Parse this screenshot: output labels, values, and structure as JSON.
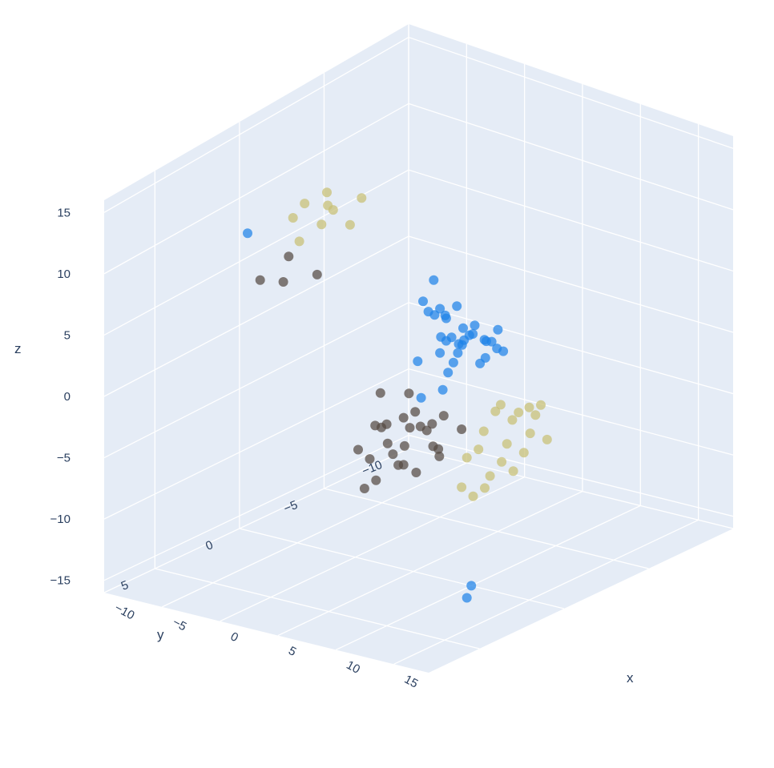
{
  "chart_data": {
    "type": "scatter",
    "subtype": "3d",
    "background_color": "#e5ecf6",
    "grid_color": "#ffffff",
    "axes": {
      "x": {
        "label": "x",
        "range": [
          -10,
          18
        ],
        "ticks": [
          "−10",
          "−5",
          "0",
          "5",
          "10",
          "15"
        ]
      },
      "y": {
        "label": "y",
        "range": [
          -10,
          8
        ],
        "ticks": [
          "−10",
          "−5",
          "0",
          "5"
        ]
      },
      "z": {
        "label": "z",
        "range": [
          -16,
          16
        ],
        "ticks": [
          "15",
          "10",
          "5",
          "0",
          "−5",
          "−10",
          "−15"
        ]
      }
    },
    "series": [
      {
        "color": "#1f82e8",
        "points": [
          [
            -2,
            5,
            13.5
          ],
          [
            10,
            0,
            -16
          ],
          [
            14,
            3,
            -14
          ],
          [
            -6,
            -8,
            -10
          ],
          [
            -3,
            -9,
            -5
          ],
          [
            -2,
            -9,
            -5.2
          ],
          [
            0,
            -5,
            0.5
          ],
          [
            2,
            -4,
            1
          ],
          [
            -1,
            -6,
            -1
          ],
          [
            3,
            -5,
            0
          ],
          [
            1,
            -3,
            -2
          ],
          [
            -2,
            -6,
            1.5
          ],
          [
            4,
            -4,
            0.2
          ],
          [
            0,
            -5,
            -3
          ],
          [
            2,
            -6,
            -4
          ],
          [
            1,
            -7,
            -4.5
          ],
          [
            3,
            -4,
            -1.5
          ],
          [
            -1,
            -5,
            0
          ],
          [
            5,
            -3,
            0.8
          ],
          [
            6,
            -2,
            1.5
          ],
          [
            7,
            -1,
            1
          ],
          [
            8,
            0,
            1.2
          ],
          [
            9,
            1,
            0.8
          ],
          [
            2,
            -5,
            -0.5
          ],
          [
            3,
            -6,
            -2
          ],
          [
            1,
            -4,
            1
          ],
          [
            4,
            -5,
            -1
          ],
          [
            0,
            -6,
            0
          ],
          [
            2,
            -7,
            -3.5
          ],
          [
            -1,
            -7,
            -4
          ],
          [
            5,
            -5,
            0.2
          ],
          [
            3,
            -3,
            0.5
          ],
          [
            1,
            -5,
            -1.5
          ],
          [
            4,
            -6,
            -2.5
          ],
          [
            2,
            -4,
            -0.8
          ],
          [
            0,
            -4,
            1.8
          ]
        ]
      },
      {
        "color": "#544a42",
        "points": [
          [
            9,
            3,
            2
          ],
          [
            10,
            4,
            1
          ],
          [
            11,
            3,
            0
          ],
          [
            12,
            5,
            1.5
          ],
          [
            10,
            6,
            -1
          ],
          [
            11,
            5,
            -2
          ],
          [
            12,
            4,
            0.5
          ],
          [
            13,
            6,
            1
          ],
          [
            10,
            3,
            -0.5
          ],
          [
            11,
            6,
            2
          ],
          [
            12,
            7,
            -1.5
          ],
          [
            9,
            5,
            0.8
          ],
          [
            13,
            4,
            -0.8
          ],
          [
            11,
            4,
            1.8
          ],
          [
            12,
            6,
            0
          ],
          [
            10,
            5,
            1.2
          ],
          [
            8,
            4,
            2.5
          ],
          [
            13,
            7,
            2
          ],
          [
            11,
            7,
            -2.5
          ],
          [
            10,
            4,
            -3
          ],
          [
            12,
            3,
            1
          ],
          [
            14,
            5,
            0.5
          ],
          [
            9,
            6,
            -0.5
          ],
          [
            15,
            4,
            1.5
          ],
          [
            16,
            6,
            1
          ],
          [
            14,
            6,
            -1
          ],
          [
            3,
            6,
            14
          ],
          [
            4,
            7,
            13
          ],
          [
            2,
            7,
            12.5
          ],
          [
            4,
            5,
            12
          ]
        ]
      },
      {
        "color": "#c8bf73",
        "points": [
          [
            15,
            1,
            0
          ],
          [
            16,
            2,
            -1
          ],
          [
            17,
            1,
            1
          ],
          [
            14,
            3,
            -2
          ],
          [
            16,
            3,
            -3
          ],
          [
            18,
            2,
            0.5
          ],
          [
            15,
            2,
            1.5
          ],
          [
            17,
            3,
            -1.5
          ],
          [
            16,
            0,
            0.8
          ],
          [
            14,
            2,
            -0.5
          ],
          [
            18,
            3,
            -2
          ],
          [
            15,
            4,
            -3.5
          ],
          [
            17,
            2,
            2
          ],
          [
            16,
            4,
            -4
          ],
          [
            14,
            1,
            1
          ],
          [
            18,
            1,
            -0.8
          ],
          [
            15,
            3,
            -1
          ],
          [
            16,
            1,
            -2.5
          ],
          [
            17,
            4,
            -3
          ],
          [
            15,
            0,
            0.3
          ],
          [
            0,
            3,
            15
          ],
          [
            1,
            2,
            14
          ],
          [
            -1,
            3,
            13.5
          ],
          [
            2,
            1,
            14.5
          ],
          [
            1,
            4,
            13
          ],
          [
            0,
            2,
            12.5
          ],
          [
            -1,
            1,
            14
          ],
          [
            2,
            3,
            15.5
          ],
          [
            1,
            1,
            12
          ]
        ]
      }
    ]
  }
}
